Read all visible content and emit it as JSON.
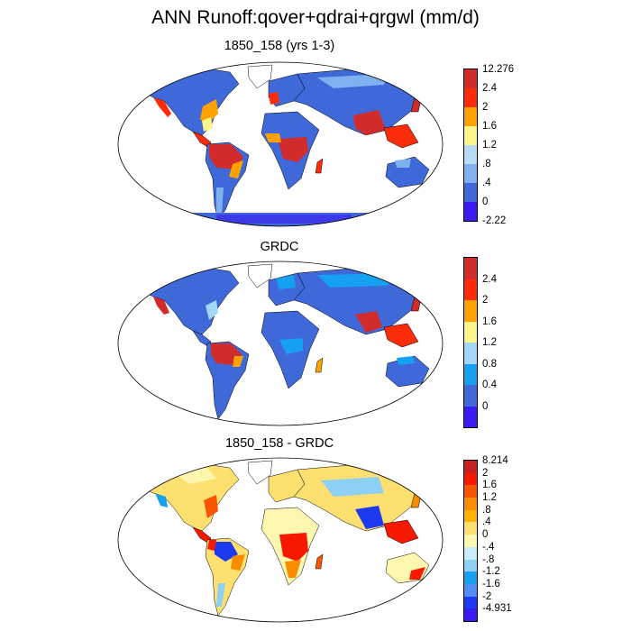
{
  "title": "ANN Runoff:qover+qdrai+qrgwl (mm/d)",
  "panels": [
    {
      "title": "1850_158 (yrs 1-3)",
      "colors": [
        "#3a1cf0",
        "#3f68d8",
        "#7fb0f0",
        "#b8dcf6",
        "#fdf58a",
        "#ffa200",
        "#fb2c0a",
        "#d22b2b"
      ],
      "labels": [
        "-2.22",
        "0",
        ".4",
        ".8",
        "1.2",
        "1.6",
        "2",
        "2.4",
        "12.276"
      ]
    },
    {
      "title": "GRDC",
      "colors": [
        "#3a1cf0",
        "#3f68d8",
        "#16a0f0",
        "#a4d6f8",
        "#fdf58a",
        "#ffa200",
        "#fb2c0a",
        "#d22b2b"
      ],
      "labels": [
        "0",
        "0.4",
        "0.8",
        "1.2",
        "1.6",
        "2",
        "2.4"
      ]
    },
    {
      "title": "1850_158 - GRDC",
      "colors": [
        "#3a1cf0",
        "#1e3af0",
        "#4e8ef5",
        "#16a0f0",
        "#8ed0f4",
        "#c8ecfa",
        "#fdf7b0",
        "#fde070",
        "#fdb400",
        "#fa8c00",
        "#f85500",
        "#f81a00",
        "#c82020"
      ],
      "labels": [
        "-4.931",
        "-2",
        "-1.6",
        "-1.2",
        "-.8",
        "-.4",
        "0",
        ".4",
        ".8",
        "1.2",
        "1.6",
        "2",
        "8.214"
      ]
    }
  ]
}
